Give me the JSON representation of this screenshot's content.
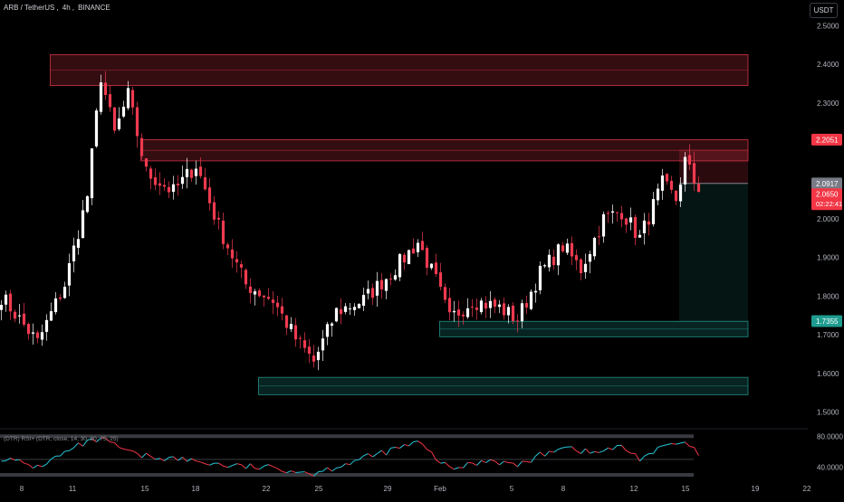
{
  "header": {
    "symbol": "ARB / TetherUS",
    "interval": "4h",
    "exchange": "BINANCE",
    "currency_button": "USDT"
  },
  "indicator": {
    "label": "(DTR) RSI+ (DTR, close, 14, 30, 80, 75, 25)"
  },
  "colors": {
    "background": "#000000",
    "up": "#ffffff",
    "down": "#ef3a4f",
    "supply_zone": "#ef3a4f",
    "demand_zone": "#26a69a",
    "rsi_up": "#26c6da",
    "rsi_down": "#f23645"
  },
  "chart_data": {
    "type": "candlestick",
    "symbol": "ARB/USDT",
    "interval": "4h",
    "ylim": [
      1.45,
      2.55
    ],
    "y_ticks": [
      "2.5000",
      "2.4000",
      "2.3000",
      "2.2000",
      "2.1000",
      "2.0000",
      "1.9000",
      "1.8000",
      "1.7000",
      "1.6000",
      "1.5000"
    ],
    "x_ticks": [
      "8",
      "11",
      "15",
      "18",
      "22",
      "25",
      "29",
      "Feb",
      "5",
      "8",
      "12",
      "15",
      "19",
      "22"
    ],
    "price_tags": [
      {
        "value": "2.2051",
        "style": "red"
      },
      {
        "value": "2.0917",
        "style": "gray"
      },
      {
        "value": "2.0650",
        "sub": "02:22:41",
        "style": "red"
      },
      {
        "value": "1.7355",
        "style": "teal"
      }
    ],
    "key_points": [
      {
        "t": 0,
        "price": 1.8
      },
      {
        "t": 8,
        "price": 1.68
      },
      {
        "t": 14,
        "price": 1.83
      },
      {
        "t": 19,
        "price": 2.06
      },
      {
        "t": 22,
        "price": 2.37
      },
      {
        "t": 25,
        "price": 2.22
      },
      {
        "t": 28,
        "price": 2.32
      },
      {
        "t": 32,
        "price": 2.12
      },
      {
        "t": 38,
        "price": 2.07
      },
      {
        "t": 43,
        "price": 2.14
      },
      {
        "t": 48,
        "price": 1.98
      },
      {
        "t": 54,
        "price": 1.83
      },
      {
        "t": 60,
        "price": 1.79
      },
      {
        "t": 65,
        "price": 1.69
      },
      {
        "t": 69,
        "price": 1.63
      },
      {
        "t": 74,
        "price": 1.76
      },
      {
        "t": 80,
        "price": 1.79
      },
      {
        "t": 86,
        "price": 1.86
      },
      {
        "t": 92,
        "price": 1.94
      },
      {
        "t": 96,
        "price": 1.84
      },
      {
        "t": 99,
        "price": 1.74
      },
      {
        "t": 104,
        "price": 1.79
      },
      {
        "t": 110,
        "price": 1.77
      },
      {
        "t": 114,
        "price": 1.74
      },
      {
        "t": 119,
        "price": 1.86
      },
      {
        "t": 124,
        "price": 1.93
      },
      {
        "t": 128,
        "price": 1.87
      },
      {
        "t": 133,
        "price": 2.0
      },
      {
        "t": 137,
        "price": 2.02
      },
      {
        "t": 141,
        "price": 1.95
      },
      {
        "t": 146,
        "price": 2.09
      },
      {
        "t": 149,
        "price": 2.05
      },
      {
        "t": 151,
        "price": 2.15
      },
      {
        "t": 154,
        "price": 2.07
      }
    ],
    "zones": [
      {
        "kind": "supply",
        "from_t": 11,
        "to_t": 200,
        "top": 2.425,
        "bottom": 2.345
      },
      {
        "kind": "supply",
        "from_t": 31,
        "to_t": 200,
        "top": 2.205,
        "bottom": 2.15
      },
      {
        "kind": "demand",
        "from_t": 97,
        "to_t": 200,
        "top": 1.735,
        "bottom": 1.695
      },
      {
        "kind": "demand",
        "from_t": 57,
        "to_t": 200,
        "top": 1.59,
        "bottom": 1.545
      }
    ],
    "position": {
      "entry": 2.0917,
      "stop": 2.18,
      "target": 1.7355
    },
    "rsi": {
      "ylim": [
        30,
        85
      ],
      "y_ticks": [
        "80.0000",
        "40.0000"
      ],
      "upper_band": 80,
      "lower_band": 30,
      "mid": 50,
      "points": [
        {
          "t": 0,
          "v": 52
        },
        {
          "t": 8,
          "v": 40
        },
        {
          "t": 18,
          "v": 70
        },
        {
          "t": 22,
          "v": 76
        },
        {
          "t": 30,
          "v": 55
        },
        {
          "t": 40,
          "v": 50
        },
        {
          "t": 50,
          "v": 42
        },
        {
          "t": 62,
          "v": 38
        },
        {
          "t": 69,
          "v": 32
        },
        {
          "t": 78,
          "v": 48
        },
        {
          "t": 88,
          "v": 65
        },
        {
          "t": 92,
          "v": 72
        },
        {
          "t": 99,
          "v": 37
        },
        {
          "t": 108,
          "v": 50
        },
        {
          "t": 114,
          "v": 42
        },
        {
          "t": 124,
          "v": 68
        },
        {
          "t": 130,
          "v": 58
        },
        {
          "t": 137,
          "v": 66
        },
        {
          "t": 141,
          "v": 52
        },
        {
          "t": 148,
          "v": 70
        },
        {
          "t": 152,
          "v": 68
        },
        {
          "t": 154,
          "v": 55
        }
      ]
    }
  }
}
